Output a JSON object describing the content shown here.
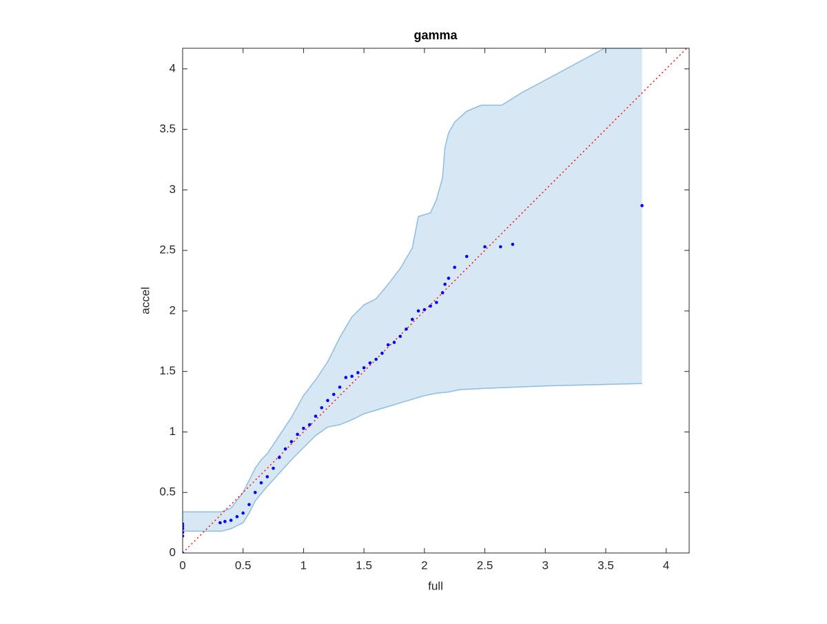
{
  "chart_data": {
    "type": "scatter",
    "title": "gamma",
    "xlabel": "full",
    "ylabel": "accel",
    "xlim": [
      0,
      4.19
    ],
    "ylim": [
      0,
      4.17
    ],
    "xticks": [
      0,
      0.5,
      1,
      1.5,
      2,
      2.5,
      3,
      3.5,
      4
    ],
    "yticks": [
      0,
      0.5,
      1,
      1.5,
      2,
      2.5,
      3,
      3.5,
      4
    ],
    "grid": false,
    "band": {
      "color": "#d7e7f4",
      "edge_color": "#8bbde0",
      "upper": {
        "x": [
          0,
          0.32,
          0.4,
          0.5,
          0.55,
          0.6,
          0.65,
          0.7,
          0.8,
          0.9,
          1.0,
          1.1,
          1.2,
          1.3,
          1.4,
          1.5,
          1.6,
          1.7,
          1.8,
          1.9,
          1.95,
          2.05,
          2.1,
          2.15,
          2.17,
          2.2,
          2.25,
          2.35,
          2.47,
          2.64,
          2.8,
          3.49,
          3.8
        ],
        "y": [
          0.34,
          0.34,
          0.37,
          0.5,
          0.6,
          0.7,
          0.77,
          0.82,
          0.97,
          1.12,
          1.3,
          1.43,
          1.58,
          1.78,
          1.95,
          2.05,
          2.1,
          2.22,
          2.35,
          2.52,
          2.78,
          2.81,
          2.92,
          3.1,
          3.35,
          3.47,
          3.56,
          3.65,
          3.7,
          3.7,
          3.8,
          4.17,
          4.17
        ]
      },
      "lower": {
        "x": [
          0,
          0.32,
          0.4,
          0.5,
          0.55,
          0.6,
          0.7,
          0.8,
          0.9,
          1.0,
          1.1,
          1.2,
          1.3,
          1.4,
          1.5,
          1.6,
          1.7,
          1.8,
          1.9,
          2.0,
          2.1,
          2.2,
          2.25,
          2.3,
          2.5,
          3.0,
          3.8
        ],
        "y": [
          0.18,
          0.18,
          0.2,
          0.25,
          0.33,
          0.43,
          0.55,
          0.66,
          0.77,
          0.87,
          0.97,
          1.04,
          1.06,
          1.1,
          1.15,
          1.18,
          1.21,
          1.24,
          1.27,
          1.3,
          1.32,
          1.33,
          1.34,
          1.35,
          1.36,
          1.38,
          1.4
        ]
      }
    },
    "reference": {
      "color": "#ff0000",
      "x": [
        0,
        4.19
      ],
      "y": [
        0,
        4.19
      ]
    },
    "points": {
      "color": "#0000ff",
      "x": [
        0,
        0,
        0,
        0,
        0,
        0,
        0.31,
        0.35,
        0.4,
        0.45,
        0.5,
        0.55,
        0.6,
        0.65,
        0.7,
        0.75,
        0.8,
        0.85,
        0.9,
        0.95,
        1.0,
        1.05,
        1.1,
        1.15,
        1.2,
        1.25,
        1.3,
        1.35,
        1.4,
        1.45,
        1.5,
        1.55,
        1.6,
        1.65,
        1.7,
        1.75,
        1.8,
        1.85,
        1.9,
        1.95,
        2.0,
        2.05,
        2.1,
        2.15,
        2.17,
        2.2,
        2.25,
        2.35,
        2.5,
        2.63,
        2.73,
        3.8
      ],
      "y": [
        0,
        0.14,
        0.17,
        0.2,
        0.22,
        0.24,
        0.25,
        0.26,
        0.27,
        0.3,
        0.33,
        0.4,
        0.5,
        0.58,
        0.63,
        0.7,
        0.79,
        0.86,
        0.92,
        0.98,
        1.03,
        1.06,
        1.13,
        1.2,
        1.26,
        1.31,
        1.37,
        1.45,
        1.46,
        1.49,
        1.53,
        1.57,
        1.6,
        1.65,
        1.72,
        1.74,
        1.79,
        1.85,
        1.93,
        2.0,
        2.01,
        2.04,
        2.07,
        2.15,
        2.22,
        2.27,
        2.36,
        2.45,
        2.53,
        2.53,
        2.55,
        2.87
      ]
    }
  }
}
